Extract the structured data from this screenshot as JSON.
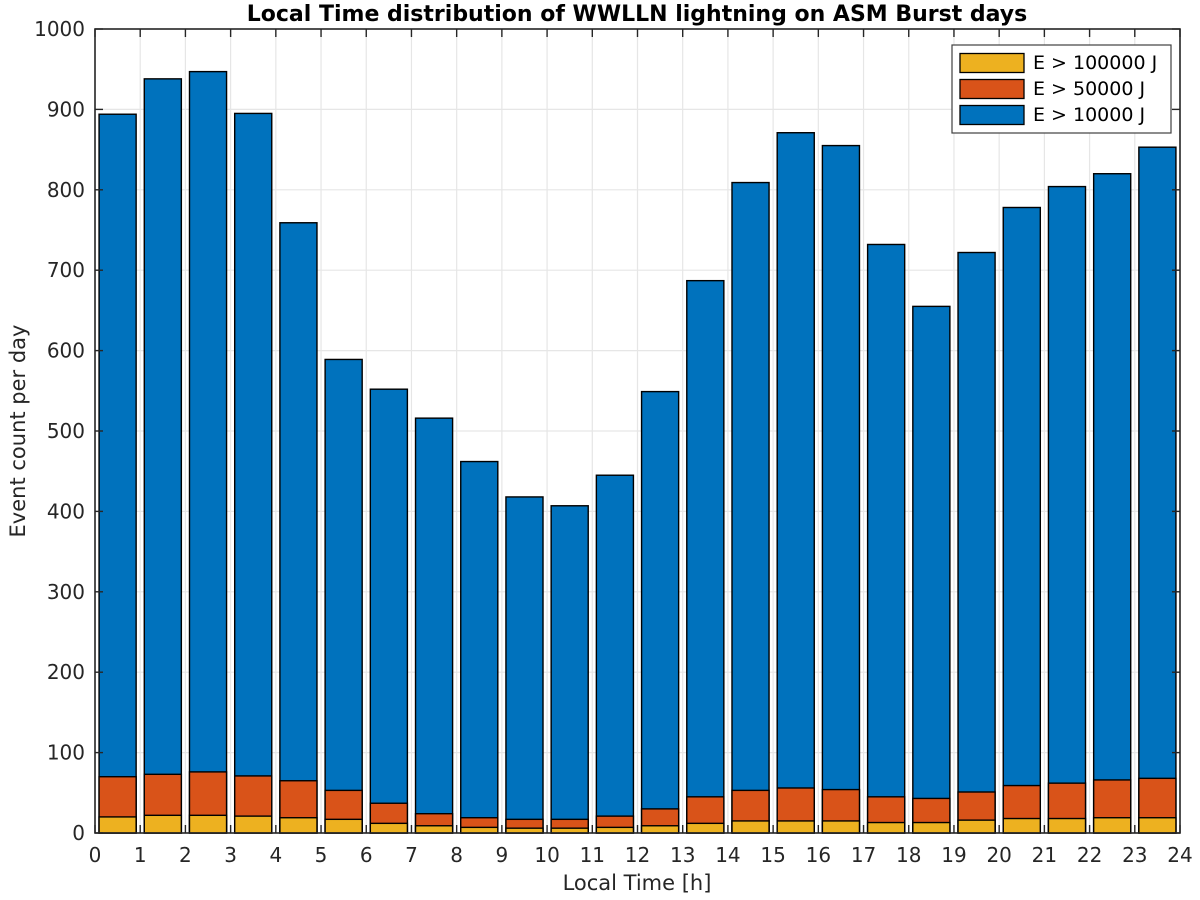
{
  "figure": {
    "title": "Local Time distribution of WWLLN lightning on ASM Burst days",
    "xlabel": "Local Time [h]",
    "ylabel": "Event count per day"
  },
  "chart_data": {
    "type": "bar",
    "mode": "overlaid",
    "title": "Local Time distribution of WWLLN lightning on ASM Burst days",
    "xlabel": "Local Time [h]",
    "ylabel": "Event count per day",
    "xlim": [
      0,
      24
    ],
    "ylim": [
      0,
      1000
    ],
    "x_ticks": [
      0,
      1,
      2,
      3,
      4,
      5,
      6,
      7,
      8,
      9,
      10,
      11,
      12,
      13,
      14,
      15,
      16,
      17,
      18,
      19,
      20,
      21,
      22,
      23,
      24
    ],
    "y_ticks": [
      0,
      100,
      200,
      300,
      400,
      500,
      600,
      700,
      800,
      900,
      1000
    ],
    "grid": true,
    "bar_width_fraction": 0.82,
    "bar_centers": [
      0.5,
      1.5,
      2.5,
      3.5,
      4.5,
      5.5,
      6.5,
      7.5,
      8.5,
      9.5,
      10.5,
      11.5,
      12.5,
      13.5,
      14.5,
      15.5,
      16.5,
      17.5,
      18.5,
      19.5,
      20.5,
      21.5,
      22.5,
      23.5
    ],
    "series": [
      {
        "name": "E > 10000 J",
        "color": "#0072BD",
        "values": [
          894,
          938,
          947,
          895,
          759,
          589,
          552,
          516,
          462,
          418,
          407,
          445,
          549,
          687,
          809,
          871,
          855,
          732,
          655,
          722,
          778,
          804,
          820,
          853
        ]
      },
      {
        "name": "E > 50000 J",
        "color": "#D95319",
        "values": [
          70,
          73,
          76,
          71,
          65,
          53,
          37,
          24,
          19,
          17,
          17,
          21,
          30,
          45,
          53,
          56,
          54,
          45,
          43,
          51,
          59,
          62,
          66,
          68
        ]
      },
      {
        "name": "E > 100000 J",
        "color": "#EDB120",
        "values": [
          20,
          22,
          22,
          21,
          19,
          17,
          12,
          9,
          7,
          6,
          6,
          7,
          9,
          12,
          15,
          15,
          15,
          13,
          13,
          16,
          18,
          18,
          19,
          19
        ]
      }
    ],
    "legend": {
      "position": "top-right",
      "entries": [
        {
          "label": "E > 100000 J",
          "color": "#EDB120"
        },
        {
          "label": "E > 50000 J",
          "color": "#D95319"
        },
        {
          "label": "E > 10000 J",
          "color": "#0072BD"
        }
      ]
    }
  },
  "style": {
    "background": "#ffffff",
    "axis_color": "#262626",
    "grid_color": "#e6e6e6",
    "bar_edge_color": "#000000",
    "legend_border_color": "#404040",
    "legend_background": "#ffffff"
  }
}
